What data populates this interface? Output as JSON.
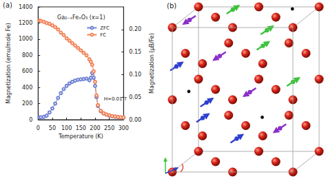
{
  "panel_labels": [
    "(a)",
    "(b)"
  ],
  "chart_data": {
    "type": "line",
    "title": "Ga₂₋ₓFeₓO₃ (x=1)",
    "x_label": "Temperature (K)",
    "y_label": "Magnetization (emu/mole Fe)",
    "y2_label": "Magnetization (μB/Fe)",
    "annotations": [
      "H=0.01 T"
    ],
    "x": [
      5,
      10,
      20,
      30,
      40,
      50,
      60,
      70,
      80,
      90,
      100,
      110,
      120,
      130,
      140,
      150,
      160,
      170,
      180,
      185,
      190,
      195,
      200,
      205,
      210,
      220,
      230,
      240,
      250,
      260,
      270,
      280,
      290,
      300
    ],
    "series": [
      {
        "name": "ZFC",
        "color": "#7082d4",
        "marker": "circle",
        "line_style": "solid",
        "values": [
          30,
          30,
          35,
          50,
          90,
          140,
          200,
          270,
          330,
          380,
          420,
          450,
          470,
          485,
          495,
          500,
          505,
          510,
          490,
          520,
          580,
          520,
          420,
          280,
          170,
          105,
          78,
          62,
          52,
          43,
          38,
          33,
          29,
          27
        ]
      },
      {
        "name": "FC",
        "color": "#f2845a",
        "marker": "circle",
        "line_style": "solid",
        "values": [
          1230,
          1225,
          1215,
          1200,
          1190,
          1170,
          1150,
          1120,
          1080,
          1050,
          1010,
          980,
          950,
          920,
          890,
          860,
          830,
          800,
          750,
          720,
          680,
          600,
          470,
          300,
          180,
          110,
          80,
          65,
          55,
          45,
          40,
          35,
          30,
          28
        ]
      }
    ],
    "xlim": [
      0,
      300
    ],
    "xticks": [
      0,
      50,
      100,
      150,
      200,
      250,
      300
    ],
    "ylim": [
      0,
      1400
    ],
    "yticks": [
      0,
      200,
      400,
      600,
      800,
      1000,
      1200,
      1400
    ],
    "y2lim": [
      0,
      0.25
    ],
    "y2ticks": [
      {
        "value": 0,
        "label": "0.00"
      },
      {
        "value": 0.05,
        "label": "0.05"
      },
      {
        "value": 0.1,
        "label": "0.10"
      },
      {
        "value": 0.15,
        "label": "0.15"
      },
      {
        "value": 0.2,
        "label": "0.20"
      }
    ],
    "grid": false,
    "legend": "upper right"
  }
}
